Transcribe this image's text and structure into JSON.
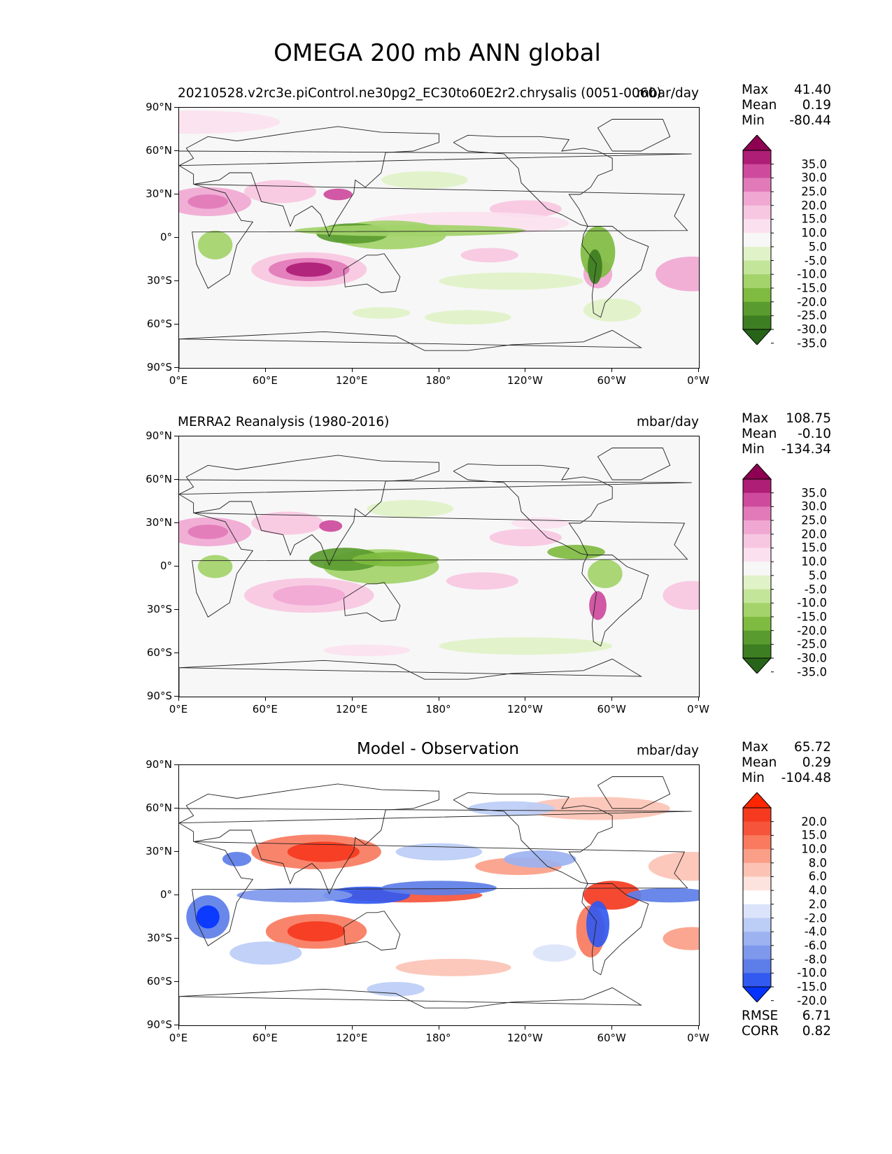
{
  "figure_title": "OMEGA 200 mb ANN global",
  "colors": {
    "pink_green": [
      "#276419",
      "#3d7e22",
      "#5a9b2f",
      "#7fbb40",
      "#a3d36a",
      "#c3e599",
      "#e0f2c7",
      "#f7f7f7",
      "#fbe1ef",
      "#f7c7e1",
      "#f0a8d2",
      "#e27ab9",
      "#cd4a9c",
      "#ae1d76",
      "#8e0152"
    ],
    "diff": [
      "#0433ff",
      "#3259f0",
      "#5d7ee8",
      "#7e98ec",
      "#9cb2f1",
      "#bccdf6",
      "#dbe4fa",
      "#ffffff",
      "#fde3dd",
      "#fcc3b5",
      "#fb9e88",
      "#f97a5f",
      "#f6553b",
      "#f53a1f",
      "#ff2600"
    ]
  },
  "panels": [
    {
      "id": "model",
      "title_left": "20210528.v2rc3e.piControl.ne30pg2_EC30to60E2r2.chrysalis (0051-0060)",
      "title_right": "mbar/day",
      "stats": [
        {
          "label": "Max",
          "value": "41.40"
        },
        {
          "label": "Mean",
          "value": "0.19"
        },
        {
          "label": "Min",
          "value": "-80.44"
        }
      ],
      "colorbar_labels": [
        "35.0",
        "30.0",
        "25.0",
        "20.0",
        "15.0",
        "10.0",
        "5.0",
        "-5.0",
        "-10.0",
        "-15.0",
        "-20.0",
        "-25.0",
        "-30.0",
        "-35.0"
      ]
    },
    {
      "id": "obs",
      "title_left": "MERRA2 Reanalysis (1980-2016)",
      "title_right": "mbar/day",
      "stats": [
        {
          "label": "Max",
          "value": "108.75"
        },
        {
          "label": "Mean",
          "value": "-0.10"
        },
        {
          "label": "Min",
          "value": "-134.34"
        }
      ],
      "colorbar_labels": [
        "35.0",
        "30.0",
        "25.0",
        "20.0",
        "15.0",
        "10.0",
        "5.0",
        "-5.0",
        "-10.0",
        "-15.0",
        "-20.0",
        "-25.0",
        "-30.0",
        "-35.0"
      ]
    },
    {
      "id": "diff",
      "title_center": "Model - Observation",
      "title_right": "mbar/day",
      "stats": [
        {
          "label": "Max",
          "value": "65.72"
        },
        {
          "label": "Mean",
          "value": "0.29"
        },
        {
          "label": "Min",
          "value": "-104.48"
        }
      ],
      "colorbar_labels": [
        "20.0",
        "15.0",
        "10.0",
        "8.0",
        "6.0",
        "4.0",
        "2.0",
        "-2.0",
        "-4.0",
        "-6.0",
        "-8.0",
        "-10.0",
        "-15.0",
        "-20.0"
      ],
      "bottom_stats": [
        {
          "label": "RMSE",
          "value": "6.71"
        },
        {
          "label": "CORR",
          "value": "0.82"
        }
      ]
    }
  ],
  "axes": {
    "lat_ticks": [
      "90°N",
      "60°N",
      "30°N",
      "0°",
      "30°S",
      "60°S",
      "90°S"
    ],
    "lon_ticks": [
      "0°E",
      "60°E",
      "120°E",
      "180°",
      "120°W",
      "60°W",
      "0°W"
    ]
  }
}
